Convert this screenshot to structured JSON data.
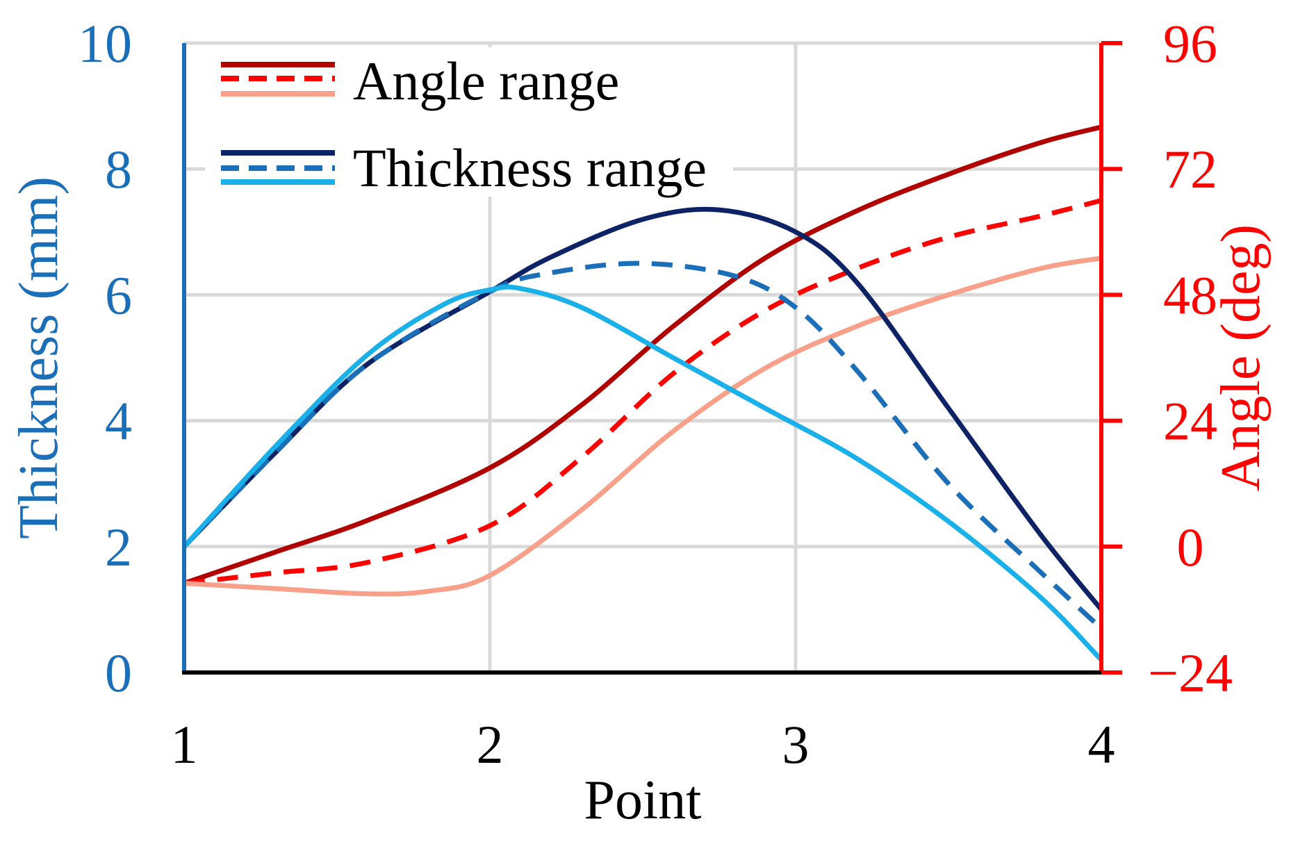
{
  "chart_data": {
    "type": "line",
    "xlabel": "Point",
    "x_ticks": [
      1,
      2,
      3,
      4
    ],
    "xlim": [
      1,
      4
    ],
    "y_left": {
      "label": "Thickness (mm)",
      "ticks": [
        "0",
        "2",
        "4",
        "6",
        "8",
        "10"
      ],
      "ylim": [
        0,
        10
      ],
      "color": "#1a6fb8"
    },
    "y_right": {
      "label": "Angle (deg)",
      "ticks": [
        "−24",
        "0",
        "24",
        "48",
        "72",
        "96"
      ],
      "ylim": [
        -24,
        96
      ],
      "color": "#ff0000"
    },
    "grid": true,
    "legend": {
      "placement": "top-left",
      "entries": [
        {
          "label": "Angle range",
          "colors": [
            "#b00000",
            "#ff0000",
            "#f8a08a"
          ]
        },
        {
          "label": "Thickness range",
          "colors": [
            "#0d2366",
            "#1a6fb8",
            "#1ab0ea"
          ]
        }
      ]
    },
    "series": [
      {
        "axis": "right",
        "color": "#b00000",
        "style": "solid",
        "x": [
          1,
          1.3,
          1.6,
          2.0,
          2.3,
          2.6,
          2.9,
          3.2,
          3.5,
          3.8,
          4.0
        ],
        "values": [
          -7,
          -1,
          5,
          15,
          27,
          42,
          55,
          64,
          71,
          77,
          80
        ]
      },
      {
        "axis": "right",
        "color": "#ff0000",
        "style": "dashed",
        "x": [
          1,
          1.3,
          1.6,
          2.0,
          2.3,
          2.6,
          2.9,
          3.2,
          3.5,
          3.8,
          4.0
        ],
        "values": [
          -7,
          -5,
          -3,
          4,
          17,
          33,
          45,
          53,
          59,
          63,
          66
        ]
      },
      {
        "axis": "right",
        "color": "#f8a08a",
        "style": "solid",
        "x": [
          1,
          1.3,
          1.6,
          1.8,
          2.0,
          2.3,
          2.6,
          2.9,
          3.2,
          3.5,
          3.8,
          4.0
        ],
        "values": [
          -7,
          -8,
          -9,
          -8.5,
          -5.5,
          7,
          22,
          34,
          42,
          48,
          53,
          55
        ]
      },
      {
        "axis": "left",
        "color": "#0d2366",
        "style": "solid",
        "x": [
          1,
          1.3,
          1.6,
          2.0,
          2.2,
          2.5,
          2.75,
          3.0,
          3.2,
          3.5,
          3.8,
          4.0
        ],
        "values": [
          2,
          3.5,
          4.9,
          6.05,
          6.6,
          7.2,
          7.35,
          7.0,
          6.2,
          4.2,
          2.2,
          1.0
        ]
      },
      {
        "axis": "left",
        "color": "#1a6fb8",
        "style": "dashed",
        "x": [
          1,
          1.3,
          1.6,
          2.0,
          2.2,
          2.5,
          2.8,
          3.0,
          3.2,
          3.5,
          3.8,
          4.0
        ],
        "values": [
          2,
          3.5,
          4.9,
          6.05,
          6.35,
          6.5,
          6.3,
          5.8,
          4.8,
          3.0,
          1.6,
          0.7
        ]
      },
      {
        "axis": "left",
        "color": "#1ab0ea",
        "style": "solid",
        "x": [
          1,
          1.3,
          1.6,
          1.85,
          2.0,
          2.1,
          2.3,
          2.6,
          2.9,
          3.2,
          3.5,
          3.8,
          4.0
        ],
        "values": [
          2,
          3.6,
          5.05,
          5.85,
          6.08,
          6.1,
          5.8,
          5.0,
          4.2,
          3.4,
          2.4,
          1.2,
          0.2
        ]
      }
    ]
  }
}
